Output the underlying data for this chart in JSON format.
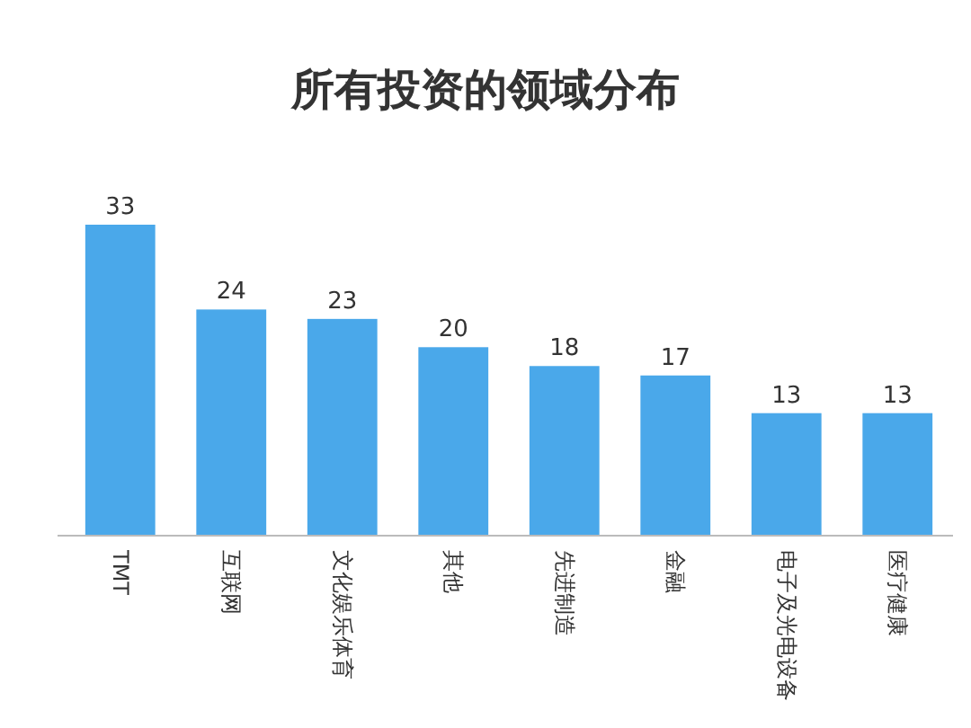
{
  "chart_data": {
    "type": "bar",
    "title": "所有投资的领域分布",
    "categories": [
      "TMT",
      "互联网",
      "文化娱乐体育",
      "其他",
      "先进制造",
      "金融",
      "电子及光电设备",
      "医疗健康"
    ],
    "values": [
      33,
      24,
      23,
      20,
      18,
      17,
      13,
      13
    ],
    "color": "#4aa8ea",
    "data_labels": true
  }
}
